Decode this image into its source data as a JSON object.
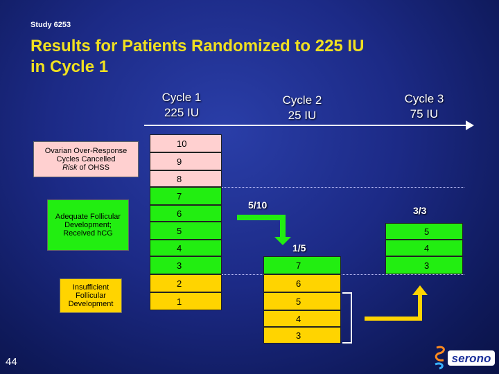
{
  "study": "Study 6253",
  "title_line1": "Results for Patients Randomized to 225 IU",
  "title_line2": "in Cycle 1",
  "columns": [
    {
      "line1": "Cycle 1",
      "line2": "225 IU"
    },
    {
      "line1": "Cycle 2",
      "line2": "25 IU"
    },
    {
      "line1": "Cycle 3",
      "line2": "75 IU"
    }
  ],
  "labels": {
    "ohss": "Ovarian Over-Response Cycles Cancelled",
    "ohss_risk_word": "Risk",
    "ohss_tail": " of OHSS",
    "adequate": "Adequate Follicular Development; Received hCG",
    "insufficient": "Insufficient Follicular Development"
  },
  "cycle1_cells": [
    "10",
    "9",
    "8",
    "7",
    "6",
    "5",
    "4",
    "3",
    "2",
    "1"
  ],
  "cycle2_cells": [
    "7",
    "6",
    "5",
    "4",
    "3"
  ],
  "cycle3_cells": [
    "5",
    "4",
    "3"
  ],
  "cycle2_count": "5/10",
  "cycle2_fraction": "1/5",
  "cycle3_count": "3/3",
  "page_number": "44",
  "logo_text": "serono",
  "colors": {
    "title": "#f0e020",
    "ohss": "#ffd0d0",
    "insufficient": "#ffd400",
    "adequate": "#22ee11",
    "arrow": "#22ee11"
  }
}
